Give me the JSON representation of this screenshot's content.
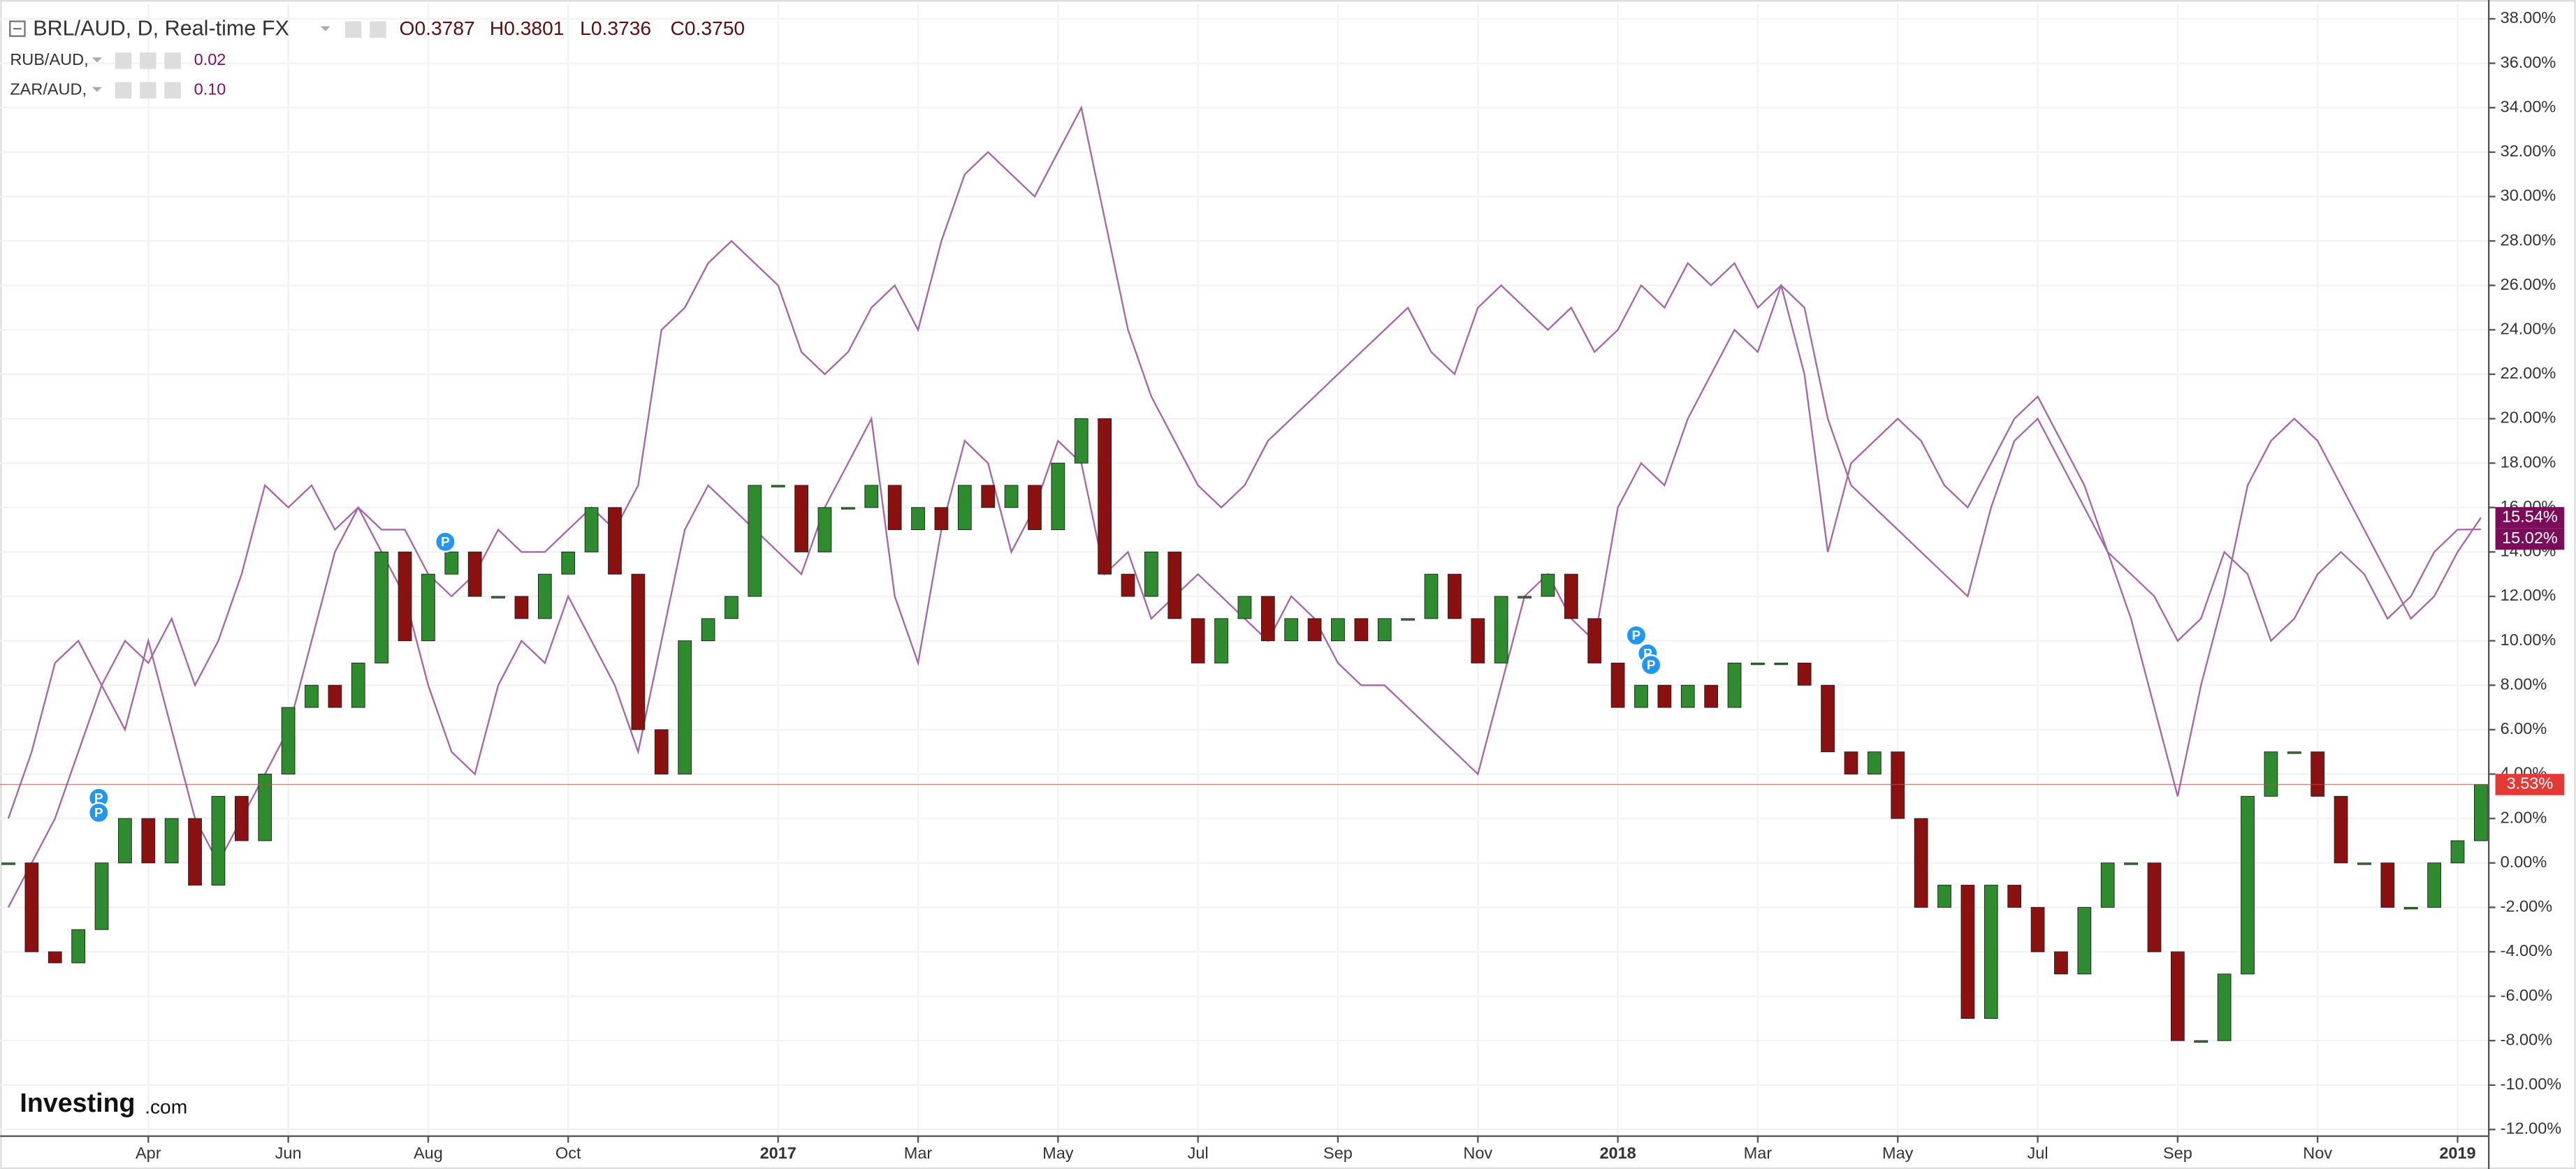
{
  "chart_data": {
    "type": "line",
    "categories": [
      null,
      null,
      null,
      null,
      null,
      null,
      "Apr",
      null,
      null,
      null,
      null,
      null,
      "Jun",
      null,
      null,
      null,
      null,
      null,
      "Aug",
      null,
      null,
      null,
      null,
      null,
      "Oct",
      null,
      null,
      null,
      null,
      null,
      null,
      null,
      null,
      "2017",
      null,
      null,
      null,
      null,
      null,
      "Mar",
      null,
      null,
      null,
      null,
      null,
      "May",
      null,
      null,
      null,
      null,
      null,
      "Jul",
      null,
      null,
      null,
      null,
      null,
      "Sep",
      null,
      null,
      null,
      null,
      null,
      "Nov",
      null,
      null,
      null,
      null,
      null,
      "2018",
      null,
      null,
      null,
      null,
      null,
      "Mar",
      null,
      null,
      null,
      null,
      null,
      "May",
      null,
      null,
      null,
      null,
      null,
      "Jul",
      null,
      null,
      null,
      null,
      null,
      "Sep",
      null,
      null,
      null,
      null,
      null,
      "Nov",
      null,
      null,
      null,
      null,
      null,
      "2019",
      null
    ],
    "series": [
      {
        "name": "BRL/AUD, D, Real-time FX",
        "type": "candlestick",
        "up_color": "#2e8b2e",
        "down_color": "#8b1010",
        "color": "#e53935",
        "ohlc_labels": [
          "O0.3787",
          "H0.3801",
          "L0.3736",
          "C0.3750"
        ],
        "last_label": "3.53%",
        "values": [
          0,
          -4,
          -4.5,
          -3,
          0,
          2,
          0,
          2,
          -1,
          3,
          1,
          4,
          7,
          8,
          7,
          9,
          14,
          10,
          13,
          14,
          12,
          12,
          11,
          13,
          14,
          16,
          13,
          6,
          4,
          10,
          11,
          12,
          17,
          17,
          14,
          16,
          16,
          17,
          15,
          16,
          15,
          17,
          16,
          17,
          15,
          18,
          20,
          13,
          12,
          14,
          11,
          9,
          11,
          12,
          10,
          11,
          10,
          11,
          10,
          11,
          11,
          13,
          11,
          9,
          12,
          12,
          13,
          11,
          9,
          7,
          8,
          7,
          8,
          7,
          9,
          9,
          9,
          8,
          5,
          4,
          5,
          2,
          -2,
          -1,
          -7,
          -1,
          -2,
          -4,
          -5,
          -2,
          0,
          0,
          -4,
          -8,
          -8,
          -5,
          3,
          5,
          5,
          3,
          0,
          0,
          -2,
          -2,
          0,
          1,
          3.53
        ]
      },
      {
        "name": "RUB/AUD,",
        "legend_value": "0.02",
        "color": "#a667a8",
        "last_label": "15.54%",
        "values": [
          -2,
          0,
          2,
          5,
          8,
          10,
          9,
          11,
          8,
          10,
          13,
          17,
          16,
          17,
          15,
          16,
          15,
          15,
          13,
          12,
          13,
          15,
          14,
          14,
          15,
          16,
          15,
          17,
          24,
          25,
          27,
          28,
          27,
          26,
          23,
          22,
          23,
          25,
          26,
          24,
          28,
          31,
          32,
          31,
          30,
          32,
          34,
          29,
          24,
          21,
          19,
          17,
          16,
          17,
          19,
          20,
          21,
          22,
          23,
          24,
          25,
          23,
          22,
          25,
          26,
          25,
          24,
          25,
          23,
          24,
          26,
          25,
          27,
          26,
          27,
          25,
          26,
          22,
          14,
          18,
          19,
          20,
          19,
          17,
          16,
          18,
          20,
          21,
          19,
          17,
          14,
          11,
          7,
          3,
          8,
          12,
          17,
          19,
          20,
          19,
          17,
          15,
          13,
          11,
          12,
          14,
          15.54
        ]
      },
      {
        "name": "ZAR/AUD,",
        "legend_value": "0.10",
        "color": "#a667a8",
        "last_label": "15.02%",
        "values": [
          2,
          5,
          9,
          10,
          8,
          6,
          10,
          6,
          2,
          0,
          2,
          4,
          6,
          10,
          14,
          16,
          14,
          12,
          8,
          5,
          4,
          8,
          10,
          9,
          12,
          10,
          8,
          5,
          10,
          15,
          17,
          16,
          15,
          14,
          13,
          16,
          18,
          20,
          12,
          9,
          15,
          19,
          18,
          14,
          16,
          19,
          18,
          13,
          14,
          11,
          12,
          13,
          12,
          11,
          10,
          12,
          11,
          9,
          8,
          8,
          7,
          6,
          5,
          4,
          8,
          12,
          13,
          11,
          10,
          16,
          18,
          17,
          20,
          22,
          24,
          23,
          26,
          25,
          20,
          17,
          16,
          15,
          14,
          13,
          12,
          16,
          19,
          20,
          18,
          16,
          14,
          13,
          12,
          10,
          11,
          14,
          13,
          10,
          11,
          13,
          14,
          13,
          11,
          12,
          14,
          15,
          15.02
        ]
      }
    ],
    "ylim": [
      -12.3,
      38.7
    ],
    "yticks": [
      {
        "value": -12,
        "label": "-12.00%"
      },
      {
        "value": -10,
        "label": "-10.00%"
      },
      {
        "value": -8,
        "label": "-8.00%"
      },
      {
        "value": -6,
        "label": "-6.00%"
      },
      {
        "value": -4,
        "label": "-4.00%"
      },
      {
        "value": -2,
        "label": "-2.00%"
      },
      {
        "value": 0,
        "label": "0.00%"
      },
      {
        "value": 2,
        "label": "2.00%"
      },
      {
        "value": 4,
        "label": "4.00%"
      },
      {
        "value": 6,
        "label": "6.00%"
      },
      {
        "value": 8,
        "label": "8.00%"
      },
      {
        "value": 10,
        "label": "10.00%"
      },
      {
        "value": 12,
        "label": "12.00%"
      },
      {
        "value": 14,
        "label": "14.00%"
      },
      {
        "value": 16,
        "label": "16.00%"
      },
      {
        "value": 18,
        "label": "18.00%"
      },
      {
        "value": 20,
        "label": "20.00%"
      },
      {
        "value": 22,
        "label": "22.00%"
      },
      {
        "value": 24,
        "label": "24.00%"
      },
      {
        "value": 26,
        "label": "26.00%"
      },
      {
        "value": 28,
        "label": "28.00%"
      },
      {
        "value": 30,
        "label": "30.00%"
      },
      {
        "value": 32,
        "label": "32.00%"
      },
      {
        "value": 34,
        "label": "34.00%"
      },
      {
        "value": 36,
        "label": "36.00%"
      },
      {
        "value": 38,
        "label": "38.00%"
      }
    ],
    "grid": true,
    "event_marker": "P",
    "logo": "Investing",
    "logo_suffix": ".com"
  }
}
